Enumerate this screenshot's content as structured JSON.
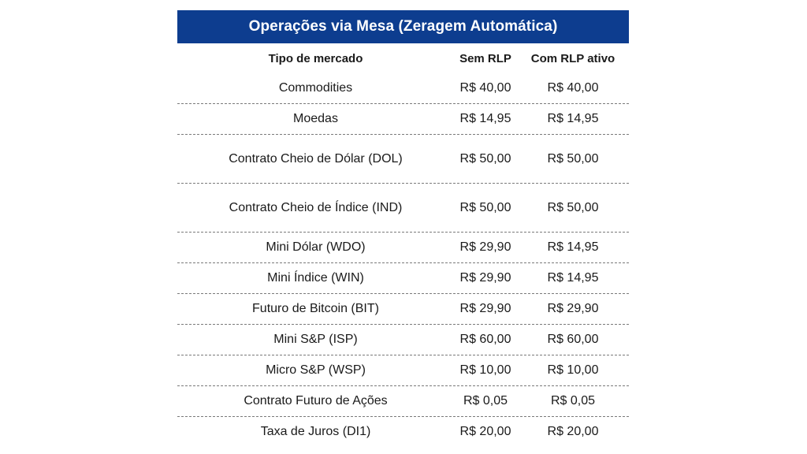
{
  "table": {
    "title": "Operações via Mesa (Zeragem Automática)",
    "headers": [
      "Tipo de mercado",
      "Sem RLP",
      "Com RLP ativo"
    ],
    "rows": [
      {
        "market": "Commodities",
        "sem_rlp": "R$ 40,00",
        "com_rlp": "R$ 40,00"
      },
      {
        "market": "Moedas",
        "sem_rlp": "R$ 14,95",
        "com_rlp": "R$ 14,95"
      },
      {
        "market": "Contrato Cheio de Dólar (DOL)",
        "sem_rlp": "R$ 50,00",
        "com_rlp": "R$ 50,00"
      },
      {
        "market": "Contrato Cheio de Índice (IND)",
        "sem_rlp": "R$ 50,00",
        "com_rlp": "R$ 50,00"
      },
      {
        "market": "Mini Dólar (WDO)",
        "sem_rlp": "R$ 29,90",
        "com_rlp": "R$ 14,95"
      },
      {
        "market": "Mini Índice (WIN)",
        "sem_rlp": "R$ 29,90",
        "com_rlp": "R$ 14,95"
      },
      {
        "market": "Futuro de Bitcoin (BIT)",
        "sem_rlp": "R$ 29,90",
        "com_rlp": "R$ 29,90"
      },
      {
        "market": "Mini S&P (ISP)",
        "sem_rlp": "R$ 60,00",
        "com_rlp": "R$ 60,00"
      },
      {
        "market": "Micro S&P (WSP)",
        "sem_rlp": "R$ 10,00",
        "com_rlp": "R$ 10,00"
      },
      {
        "market": "Contrato Futuro de Ações",
        "sem_rlp": "R$ 0,05",
        "com_rlp": "R$ 0,05"
      },
      {
        "market": "Taxa de Juros (DI1)",
        "sem_rlp": "R$ 20,00",
        "com_rlp": "R$ 20,00"
      }
    ]
  }
}
